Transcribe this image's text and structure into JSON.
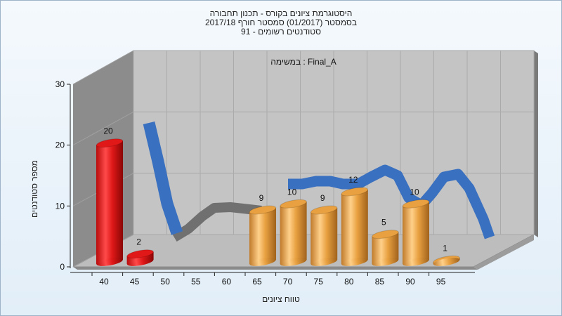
{
  "title_lines": [
    "היסטוגרמת ציונים בקורס - תכנון תחבורה",
    "בסמסטר  (01/2017)  סמסטר חורף 2017/18",
    "סטודנטים רשומים - 91"
  ],
  "chart_data": {
    "type": "bar",
    "title": "היסטוגרמת ציונים בקורס - תכנון תחבורה",
    "xlabel": "טווח ציונים",
    "ylabel": "מספר סטודנטים",
    "annotation": "במשימה : Final_A",
    "ylim": [
      0,
      30
    ],
    "yticks": [
      0,
      10,
      20,
      30
    ],
    "xticks": [
      "40",
      "45",
      "50",
      "55",
      "60",
      "65",
      "70",
      "75",
      "80",
      "85",
      "90",
      "95"
    ],
    "grid": true,
    "bars": [
      {
        "x": 40,
        "value": 20,
        "color": "#e01818"
      },
      {
        "x": 45,
        "value": 2,
        "color": "#e01818"
      },
      {
        "x": 65,
        "value": 9,
        "color": "#e8a040"
      },
      {
        "x": 70,
        "value": 10,
        "color": "#e8a040"
      },
      {
        "x": 75,
        "value": 9,
        "color": "#e8a040"
      },
      {
        "x": 80,
        "value": 12,
        "color": "#e8a040"
      },
      {
        "x": 85,
        "value": 5,
        "color": "#e8a040"
      },
      {
        "x": 90,
        "value": 10,
        "color": "#e8a040"
      },
      {
        "x": 95,
        "value": 1,
        "color": "#e8a040"
      }
    ],
    "curve_color": "#3a70c0",
    "curve_shadow_color": "#707070"
  }
}
